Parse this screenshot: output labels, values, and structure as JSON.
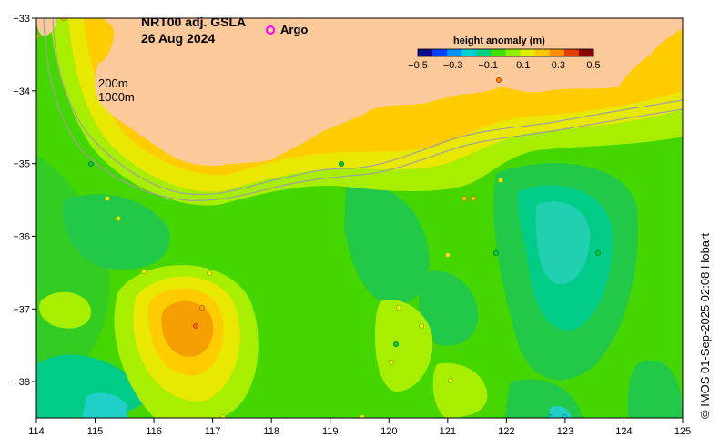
{
  "title": {
    "line1": "NRT00 adj. GSLA",
    "line2": "26 Aug 2024"
  },
  "legend": {
    "argo_label": "Argo",
    "argo_color": "#ff00ff"
  },
  "contours": {
    "label_200": "200m",
    "label_1000": "1000m",
    "line_color": "#a0a0a0"
  },
  "colorbar": {
    "title": "height anomaly (m)",
    "min": -0.5,
    "max": 0.5,
    "ticks": [
      "−0.5",
      "−0.3",
      "−0.1",
      "0.1",
      "0.3",
      "0.5"
    ],
    "colors": [
      "#0a0a8c",
      "#0040ff",
      "#0090ff",
      "#00d0d0",
      "#00d080",
      "#40e000",
      "#90f000",
      "#e0f000",
      "#ffc800",
      "#ff8c00",
      "#e04000",
      "#8c0000"
    ]
  },
  "axes": {
    "x_ticks": [
      "114",
      "115",
      "116",
      "117",
      "118",
      "119",
      "120",
      "121",
      "122",
      "123",
      "124",
      "125"
    ],
    "y_ticks": [
      "−33",
      "−34",
      "−35",
      "−36",
      "−37",
      "−38"
    ],
    "lon_range": [
      114,
      125
    ],
    "lat_range": [
      -38.5,
      -33
    ]
  },
  "colors": {
    "land": "#fbc99a",
    "background_sea": "#45d600"
  },
  "credit": "© IMOS 01-Sep-2025 02:08 Hobart"
}
